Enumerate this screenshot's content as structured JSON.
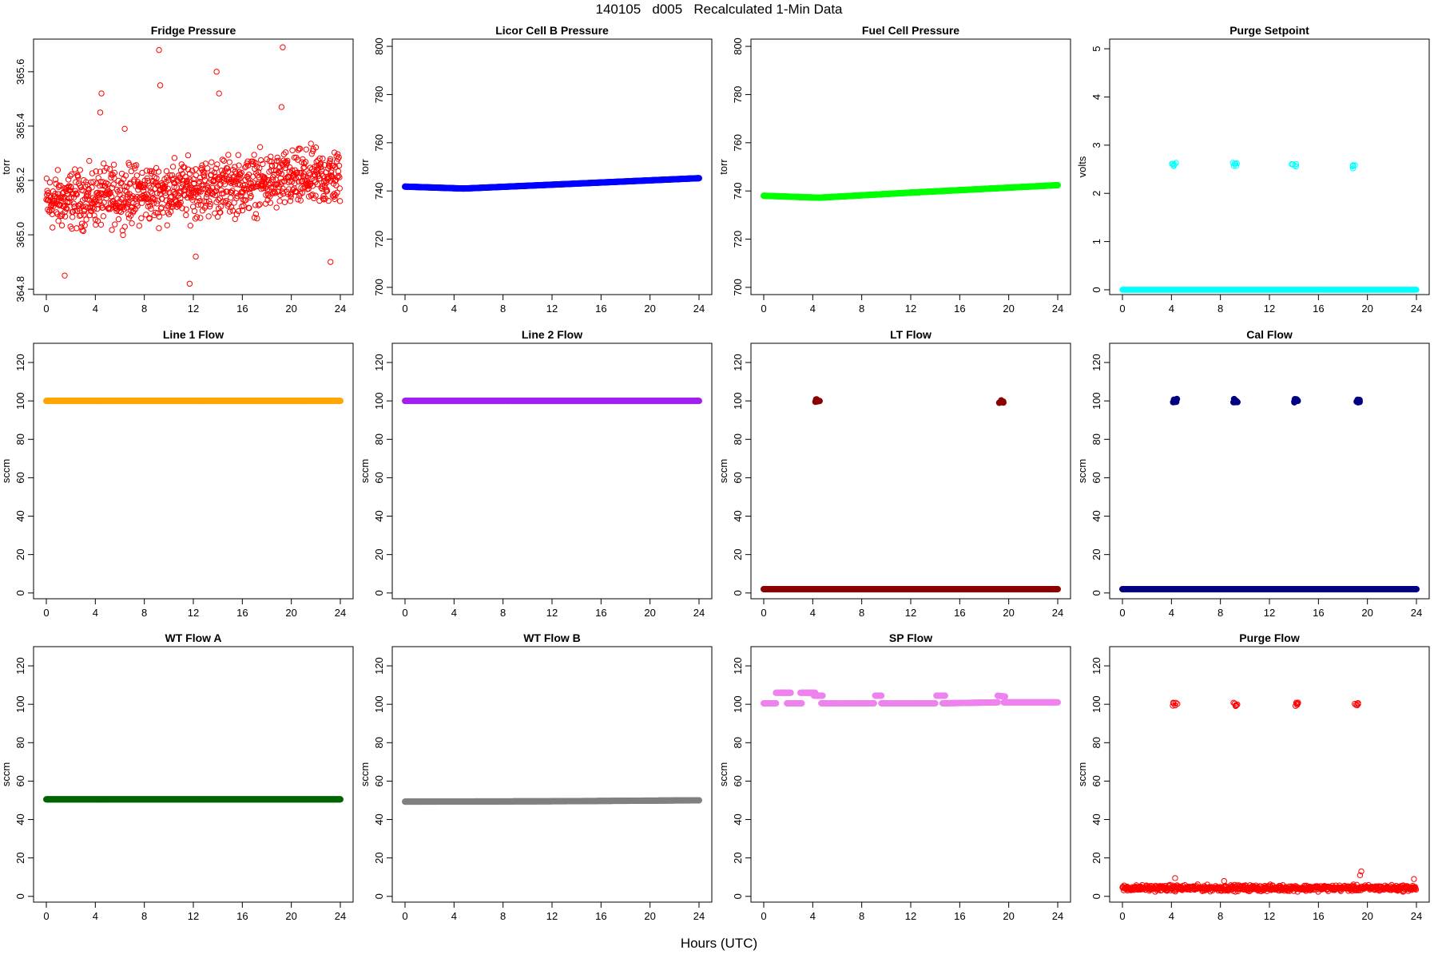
{
  "figure": {
    "title": "140105   d005   Recalculated 1-Min Data",
    "xlabel": "Hours (UTC)"
  },
  "chart_data": [
    {
      "type": "scatter",
      "title": "Fridge Pressure",
      "ylabel": "torr",
      "color": "#ff0000",
      "marker": "open-circle",
      "xlim": [
        0,
        24
      ],
      "xticks": [
        "0",
        "4",
        "8",
        "12",
        "16",
        "20",
        "24"
      ],
      "ylim": [
        364.78,
        365.72
      ],
      "yticks": [
        "364.8",
        "365.0",
        "365.2",
        "365.4",
        "365.6"
      ],
      "noisy_series": [
        {
          "base": 365.12,
          "jitter": 0.11,
          "trend": 0.004,
          "outliers": [
            [
              4.5,
              365.52
            ],
            [
              4.4,
              365.45
            ],
            [
              9.2,
              365.68
            ],
            [
              9.3,
              365.55
            ],
            [
              13.9,
              365.6
            ],
            [
              14.1,
              365.52
            ],
            [
              19.3,
              365.69
            ],
            [
              19.2,
              365.47
            ],
            [
              1.5,
              364.85
            ],
            [
              11.7,
              364.82
            ],
            [
              12.2,
              364.92
            ],
            [
              23.2,
              364.9
            ],
            [
              6.4,
              365.39
            ]
          ]
        }
      ]
    },
    {
      "type": "scatter",
      "title": "Licor Cell B Pressure",
      "ylabel": "torr",
      "color": "#0000ff",
      "marker": "filled-circle",
      "xlim": [
        0,
        24
      ],
      "xticks": [
        "0",
        "4",
        "8",
        "12",
        "16",
        "20",
        "24"
      ],
      "ylim": [
        697,
        803
      ],
      "yticks": [
        "700",
        "720",
        "740",
        "760",
        "780",
        "800"
      ],
      "lines": [
        {
          "x": [
            0,
            4.8,
            12,
            24
          ],
          "y": [
            741.8,
            741.0,
            742.6,
            745.3
          ]
        }
      ]
    },
    {
      "type": "scatter",
      "title": "Fuel Cell Pressure",
      "ylabel": "torr",
      "color": "#00ff00",
      "marker": "filled-circle",
      "xlim": [
        0,
        24
      ],
      "xticks": [
        "0",
        "4",
        "8",
        "12",
        "16",
        "20",
        "24"
      ],
      "ylim": [
        697,
        803
      ],
      "yticks": [
        "700",
        "720",
        "740",
        "760",
        "780",
        "800"
      ],
      "lines": [
        {
          "x": [
            0,
            4.5,
            12,
            24
          ],
          "y": [
            738.0,
            737.2,
            739.3,
            742.4
          ]
        }
      ]
    },
    {
      "type": "scatter",
      "title": "Purge Setpoint",
      "ylabel": "volts",
      "color": "#00ffff",
      "marker": "open-circle",
      "xlim": [
        0,
        24
      ],
      "xticks": [
        "0",
        "4",
        "8",
        "12",
        "16",
        "20",
        "24"
      ],
      "ylim": [
        -0.1,
        5.2
      ],
      "yticks": [
        "0",
        "1",
        "2",
        "3",
        "4",
        "5"
      ],
      "lines": [
        {
          "x": [
            0,
            24
          ],
          "y": [
            0,
            0
          ]
        }
      ],
      "clusters": [
        {
          "x": 4.2,
          "y": 2.6
        },
        {
          "x": 9.2,
          "y": 2.6
        },
        {
          "x": 14.0,
          "y": 2.58
        },
        {
          "x": 19.0,
          "y": 2.55
        }
      ]
    },
    {
      "type": "scatter",
      "title": "Line 1 Flow",
      "ylabel": "sccm",
      "color": "#ffa500",
      "marker": "filled-circle",
      "xlim": [
        0,
        24
      ],
      "xticks": [
        "0",
        "4",
        "8",
        "12",
        "16",
        "20",
        "24"
      ],
      "ylim": [
        -3,
        130
      ],
      "yticks": [
        "0",
        "20",
        "40",
        "60",
        "80",
        "100",
        "120"
      ],
      "lines": [
        {
          "x": [
            0,
            24
          ],
          "y": [
            100,
            100
          ]
        }
      ]
    },
    {
      "type": "scatter",
      "title": "Line 2 Flow",
      "ylabel": "sccm",
      "color": "#a020f0",
      "marker": "filled-circle",
      "xlim": [
        0,
        24
      ],
      "xticks": [
        "0",
        "4",
        "8",
        "12",
        "16",
        "20",
        "24"
      ],
      "ylim": [
        -3,
        130
      ],
      "yticks": [
        "0",
        "20",
        "40",
        "60",
        "80",
        "100",
        "120"
      ],
      "lines": [
        {
          "x": [
            0,
            24
          ],
          "y": [
            100,
            100
          ]
        }
      ]
    },
    {
      "type": "scatter",
      "title": "LT Flow",
      "ylabel": "sccm",
      "color": "#8b0000",
      "marker": "filled-circle",
      "xlim": [
        0,
        24
      ],
      "xticks": [
        "0",
        "4",
        "8",
        "12",
        "16",
        "20",
        "24"
      ],
      "ylim": [
        -3,
        130
      ],
      "yticks": [
        "0",
        "20",
        "40",
        "60",
        "80",
        "100",
        "120"
      ],
      "lines": [
        {
          "x": [
            0,
            24
          ],
          "y": [
            2,
            2
          ]
        }
      ],
      "clusters": [
        {
          "x": 4.4,
          "y": 100
        },
        {
          "x": 19.4,
          "y": 100
        }
      ]
    },
    {
      "type": "scatter",
      "title": "Cal Flow",
      "ylabel": "sccm",
      "color": "#000080",
      "marker": "filled-circle",
      "xlim": [
        0,
        24
      ],
      "xticks": [
        "0",
        "4",
        "8",
        "12",
        "16",
        "20",
        "24"
      ],
      "ylim": [
        -3,
        130
      ],
      "yticks": [
        "0",
        "20",
        "40",
        "60",
        "80",
        "100",
        "120"
      ],
      "lines": [
        {
          "x": [
            0,
            24
          ],
          "y": [
            2,
            2
          ]
        }
      ],
      "clusters": [
        {
          "x": 4.3,
          "y": 100
        },
        {
          "x": 9.2,
          "y": 100
        },
        {
          "x": 14.2,
          "y": 100
        },
        {
          "x": 19.2,
          "y": 100
        }
      ]
    },
    {
      "type": "scatter",
      "title": "WT Flow A",
      "ylabel": "sccm",
      "color": "#006400",
      "marker": "filled-circle",
      "xlim": [
        0,
        24
      ],
      "xticks": [
        "0",
        "4",
        "8",
        "12",
        "16",
        "20",
        "24"
      ],
      "ylim": [
        -3,
        130
      ],
      "yticks": [
        "0",
        "20",
        "40",
        "60",
        "80",
        "100",
        "120"
      ],
      "lines": [
        {
          "x": [
            0,
            24
          ],
          "y": [
            50.5,
            50.5
          ]
        }
      ]
    },
    {
      "type": "scatter",
      "title": "WT Flow B",
      "ylabel": "sccm",
      "color": "#808080",
      "marker": "filled-circle",
      "xlim": [
        0,
        24
      ],
      "xticks": [
        "0",
        "4",
        "8",
        "12",
        "16",
        "20",
        "24"
      ],
      "ylim": [
        -3,
        130
      ],
      "yticks": [
        "0",
        "20",
        "40",
        "60",
        "80",
        "100",
        "120"
      ],
      "lines": [
        {
          "x": [
            0,
            12,
            24
          ],
          "y": [
            49.3,
            49.5,
            50.0
          ]
        }
      ]
    },
    {
      "type": "scatter",
      "title": "SP Flow",
      "ylabel": "sccm",
      "color": "#ee82ee",
      "marker": "filled-circle",
      "xlim": [
        0,
        24
      ],
      "xticks": [
        "0",
        "4",
        "8",
        "12",
        "16",
        "20",
        "24"
      ],
      "ylim": [
        -3,
        130
      ],
      "yticks": [
        "0",
        "20",
        "40",
        "60",
        "80",
        "100",
        "120"
      ],
      "lines": [
        {
          "x": [
            0,
            1
          ],
          "y": [
            100.5,
            100.5
          ]
        },
        {
          "x": [
            1.0,
            2.2
          ],
          "y": [
            106,
            106
          ]
        },
        {
          "x": [
            1.9,
            3.1
          ],
          "y": [
            100.5,
            100.5
          ]
        },
        {
          "x": [
            3.0,
            4.2
          ],
          "y": [
            106,
            106
          ]
        },
        {
          "x": [
            4.1,
            4.8
          ],
          "y": [
            104.5,
            104.5
          ]
        },
        {
          "x": [
            4.7,
            9.0
          ],
          "y": [
            100.5,
            100.5
          ]
        },
        {
          "x": [
            9.1,
            9.6
          ],
          "y": [
            104.5,
            104.5
          ]
        },
        {
          "x": [
            9.6,
            14.0
          ],
          "y": [
            100.5,
            100.5
          ]
        },
        {
          "x": [
            14.1,
            14.8
          ],
          "y": [
            104.5,
            104.5
          ]
        },
        {
          "x": [
            14.6,
            19.1
          ],
          "y": [
            100.5,
            101
          ]
        },
        {
          "x": [
            19.1,
            19.7
          ],
          "y": [
            104.5,
            104
          ]
        },
        {
          "x": [
            19.6,
            24
          ],
          "y": [
            101,
            101
          ]
        }
      ]
    },
    {
      "type": "scatter",
      "title": "Purge Flow",
      "ylabel": "sccm",
      "color": "#ff0000",
      "marker": "open-circle",
      "xlim": [
        0,
        24
      ],
      "xticks": [
        "0",
        "4",
        "8",
        "12",
        "16",
        "20",
        "24"
      ],
      "ylim": [
        -3,
        130
      ],
      "yticks": [
        "0",
        "20",
        "40",
        "60",
        "80",
        "100",
        "120"
      ],
      "noisy_series": [
        {
          "base": 4.3,
          "jitter": 1.6,
          "trend": 0,
          "outliers": [
            [
              4.3,
              9.5
            ],
            [
              19.5,
              13
            ],
            [
              19.4,
              11
            ],
            [
              23.8,
              9
            ],
            [
              8.3,
              8
            ]
          ]
        }
      ],
      "clusters": [
        {
          "x": 4.3,
          "y": 100
        },
        {
          "x": 9.2,
          "y": 100
        },
        {
          "x": 14.2,
          "y": 100
        },
        {
          "x": 19.1,
          "y": 100
        }
      ]
    }
  ]
}
